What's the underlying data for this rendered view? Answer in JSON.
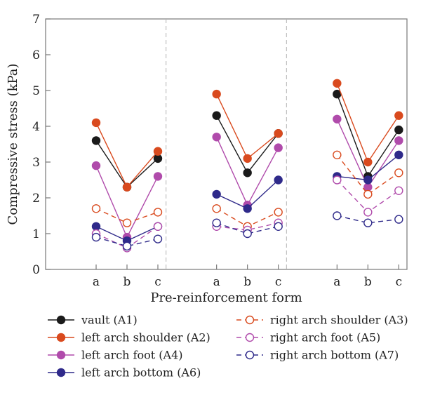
{
  "chart_data": {
    "type": "line",
    "xlabel": "Pre-reinforcement form",
    "ylabel": "Compressive stress (kPa)",
    "ylim": [
      0,
      7
    ],
    "yticks": [
      0,
      1,
      2,
      3,
      4,
      5,
      6,
      7
    ],
    "categories": [
      "a",
      "b",
      "c"
    ],
    "groups": 3,
    "grid": false,
    "legend_position": "bottom",
    "series": [
      {
        "name": "vault (A1)",
        "color": "#1a1a1a",
        "dashed": false,
        "filled": true,
        "groups": [
          [
            3.6,
            2.3,
            3.1
          ],
          [
            4.3,
            2.7,
            3.8
          ],
          [
            4.9,
            2.6,
            3.9
          ]
        ]
      },
      {
        "name": "left arch shoulder (A2)",
        "color": "#d94a1e",
        "dashed": false,
        "filled": true,
        "groups": [
          [
            4.1,
            2.3,
            3.3
          ],
          [
            4.9,
            3.1,
            3.8
          ],
          [
            5.2,
            3.0,
            4.3
          ]
        ]
      },
      {
        "name": "left arch foot (A4)",
        "color": "#b04bab",
        "dashed": false,
        "filled": true,
        "groups": [
          [
            2.9,
            0.9,
            2.6
          ],
          [
            3.7,
            1.8,
            3.4
          ],
          [
            4.2,
            2.3,
            3.6
          ]
        ]
      },
      {
        "name": "left arch bottom (A6)",
        "color": "#2f2a8a",
        "dashed": false,
        "filled": true,
        "groups": [
          [
            1.2,
            0.8,
            1.2
          ],
          [
            2.1,
            1.7,
            2.5
          ],
          [
            2.6,
            2.5,
            3.2
          ]
        ]
      },
      {
        "name": "right arch shoulder (A3)",
        "color": "#d94a1e",
        "dashed": true,
        "filled": false,
        "groups": [
          [
            1.7,
            1.3,
            1.6
          ],
          [
            1.7,
            1.2,
            1.6
          ],
          [
            3.2,
            2.1,
            2.7
          ]
        ]
      },
      {
        "name": "right arch foot (A5)",
        "color": "#b04bab",
        "dashed": true,
        "filled": false,
        "groups": [
          [
            1.0,
            0.6,
            1.2
          ],
          [
            1.2,
            1.1,
            1.3
          ],
          [
            2.5,
            1.6,
            2.2
          ]
        ]
      },
      {
        "name": "right arch bottom (A7)",
        "color": "#2f2a8a",
        "dashed": true,
        "filled": false,
        "groups": [
          [
            0.9,
            0.65,
            0.85
          ],
          [
            1.3,
            1.0,
            1.2
          ],
          [
            1.5,
            1.3,
            1.4
          ]
        ]
      }
    ],
    "legend_order": [
      0,
      4,
      1,
      5,
      2,
      6,
      3
    ]
  },
  "colors": {
    "axis": "#777777",
    "divider": "#b5b5b5"
  }
}
